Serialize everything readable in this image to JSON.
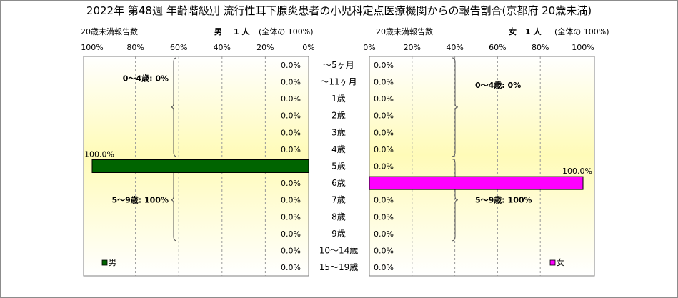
{
  "title": "2022年 第48週 年齢階級別 流行性耳下腺炎患者の小児科定点医療機関からの報告割合(京都府 20歳未満)",
  "male_header": {
    "label": "20歳未満報告数",
    "sex": "男",
    "count": "1 人",
    "note": "(全体の 100%)"
  },
  "female_header": {
    "label": "20歳未満報告数",
    "sex": "女",
    "count": "1 人",
    "note": "(全体の 100%)"
  },
  "chart_data": {
    "type": "bar",
    "orientation": "horizontal",
    "layout": "population-pyramid",
    "categories": [
      "～5ヶ月",
      "～11ヶ月",
      "1歳",
      "2歳",
      "3歳",
      "4歳",
      "5歳",
      "6歳",
      "7歳",
      "8歳",
      "9歳",
      "10～14歳",
      "15～19歳"
    ],
    "series": [
      {
        "name": "男",
        "color": "#006400",
        "values": [
          0,
          0,
          0,
          0,
          0,
          0,
          100,
          0,
          0,
          0,
          0,
          0,
          0
        ],
        "labels": [
          "0.0%",
          "0.0%",
          "0.0%",
          "0.0%",
          "0.0%",
          "0.0%",
          "100.0%",
          "0.0%",
          "0.0%",
          "0.0%",
          "0.0%",
          "0.0%",
          "0.0%"
        ]
      },
      {
        "name": "女",
        "color": "#ff00ff",
        "values": [
          0,
          0,
          0,
          0,
          0,
          0,
          0,
          100,
          0,
          0,
          0,
          0,
          0
        ],
        "labels": [
          "0.0%",
          "0.0%",
          "0.0%",
          "0.0%",
          "0.0%",
          "0.0%",
          "0.0%",
          "100.0%",
          "0.0%",
          "0.0%",
          "0.0%",
          "0.0%",
          "0.0%"
        ]
      }
    ],
    "male_ticks": [
      "100%",
      "80%",
      "60%",
      "40%",
      "20%",
      "0%"
    ],
    "female_ticks": [
      "0%",
      "20%",
      "40%",
      "60%",
      "80%",
      "100%"
    ],
    "xlim": [
      0,
      100
    ],
    "grid": "vertical dashed",
    "annotations": {
      "male": [
        {
          "text": "0～4歳: 0%",
          "from": 0,
          "to": 5
        },
        {
          "text": "5～9歳: 100%",
          "from": 6,
          "to": 10
        }
      ],
      "female": [
        {
          "text": "0～4歳: 0%",
          "from": 0,
          "to": 5
        },
        {
          "text": "5～9歳: 100%",
          "from": 6,
          "to": 10
        }
      ]
    },
    "legend": {
      "position": "bottom-left of each panel"
    }
  }
}
